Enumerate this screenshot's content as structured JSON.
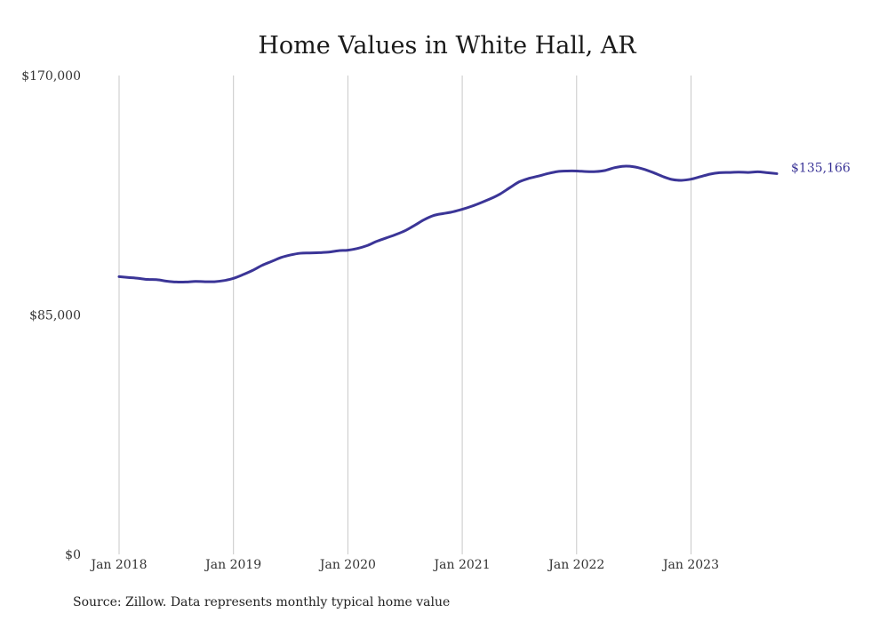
{
  "chart_data": {
    "type": "line",
    "title": "Home Values in White Hall, AR",
    "xlabel": "",
    "ylabel": "",
    "ylim": [
      0,
      170000
    ],
    "y_ticks": [
      "$0",
      "$85,000",
      "$170,000"
    ],
    "y_tick_values": [
      0,
      85000,
      170000
    ],
    "x_ticks": [
      "Jan 2018",
      "Jan 2019",
      "Jan 2020",
      "Jan 2021",
      "Jan 2022",
      "Jan 2023"
    ],
    "x_tick_values": [
      "2018-01",
      "2019-01",
      "2020-01",
      "2021-01",
      "2022-01",
      "2023-01"
    ],
    "xlim": [
      "2018-01",
      "2023-10"
    ],
    "grid": "vertical",
    "line_color": "#3b3597",
    "end_label": "$135,166",
    "x": [
      "2018-01",
      "2018-02",
      "2018-03",
      "2018-04",
      "2018-05",
      "2018-06",
      "2018-07",
      "2018-08",
      "2018-09",
      "2018-10",
      "2018-11",
      "2018-12",
      "2019-01",
      "2019-02",
      "2019-03",
      "2019-04",
      "2019-05",
      "2019-06",
      "2019-07",
      "2019-08",
      "2019-09",
      "2019-10",
      "2019-11",
      "2019-12",
      "2020-01",
      "2020-02",
      "2020-03",
      "2020-04",
      "2020-05",
      "2020-06",
      "2020-07",
      "2020-08",
      "2020-09",
      "2020-10",
      "2020-11",
      "2020-12",
      "2021-01",
      "2021-02",
      "2021-03",
      "2021-04",
      "2021-05",
      "2021-06",
      "2021-07",
      "2021-08",
      "2021-09",
      "2021-10",
      "2021-11",
      "2021-12",
      "2022-01",
      "2022-02",
      "2022-03",
      "2022-04",
      "2022-05",
      "2022-06",
      "2022-07",
      "2022-08",
      "2022-09",
      "2022-10",
      "2022-11",
      "2022-12",
      "2023-01",
      "2023-02",
      "2023-03",
      "2023-04",
      "2023-05",
      "2023-06",
      "2023-07",
      "2023-08",
      "2023-09",
      "2023-10"
    ],
    "series": [
      {
        "values": [
          98600,
          98300,
          98000,
          97600,
          97500,
          97000,
          96700,
          96700,
          96900,
          96800,
          96800,
          97200,
          98000,
          99300,
          100800,
          102600,
          104000,
          105400,
          106300,
          106900,
          107000,
          107100,
          107300,
          107800,
          108000,
          108600,
          109600,
          111100,
          112300,
          113500,
          114900,
          116800,
          118800,
          120300,
          121000,
          121600,
          122500,
          123600,
          124900,
          126300,
          128000,
          130200,
          132300,
          133500,
          134300,
          135200,
          135900,
          136100,
          136100,
          135900,
          135900,
          136300,
          137300,
          137800,
          137600,
          136800,
          135600,
          134200,
          133100,
          132800,
          133200,
          134100,
          135000,
          135500,
          135600,
          135700,
          135600,
          135800,
          135500,
          135166
        ]
      }
    ]
  },
  "source": "Source: Zillow. Data represents monthly typical home value"
}
